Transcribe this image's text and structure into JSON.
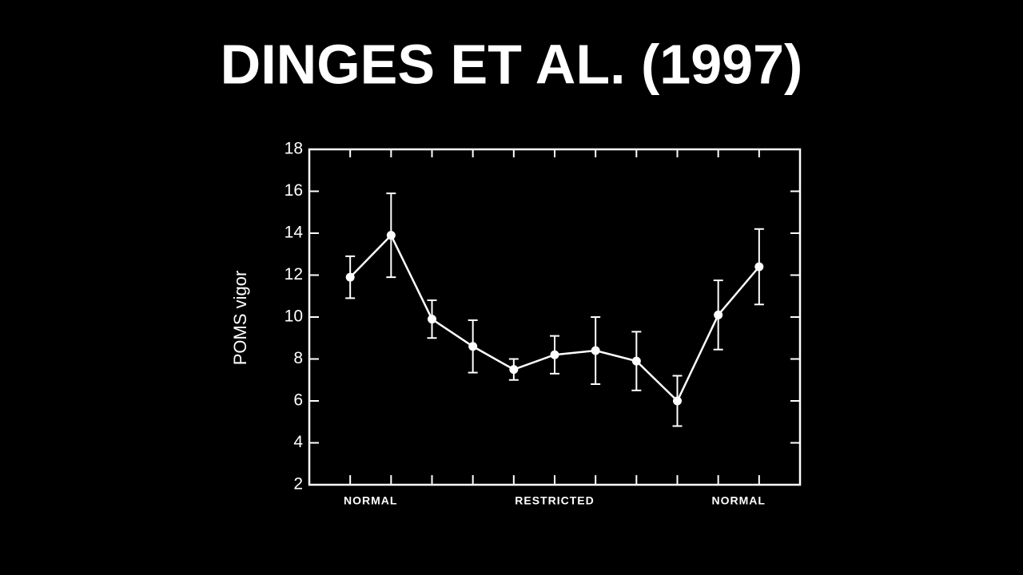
{
  "chart_data": {
    "type": "line",
    "title": "DINGES ET AL. (1997)",
    "y_label": "POMS vigor",
    "x_group_labels": [
      "NORMAL",
      "RESTRICTED",
      "NORMAL"
    ],
    "x": [
      1,
      2,
      3,
      4,
      5,
      6,
      7,
      8,
      9,
      10,
      11
    ],
    "values": [
      11.9,
      13.9,
      9.9,
      8.6,
      7.5,
      8.2,
      8.4,
      7.9,
      6.0,
      10.1,
      12.4
    ],
    "errors": [
      1.0,
      2.0,
      0.9,
      1.25,
      0.5,
      0.9,
      1.6,
      1.4,
      1.2,
      1.65,
      1.8
    ],
    "color": "#ffffff",
    "xlim": [
      0,
      12
    ],
    "xticks": [
      1,
      2,
      3,
      4,
      5,
      6,
      7,
      8,
      9,
      10,
      11
    ],
    "ylim": [
      2,
      18
    ],
    "yticks": [
      2,
      4,
      6,
      8,
      10,
      12,
      14,
      16,
      18
    ]
  }
}
